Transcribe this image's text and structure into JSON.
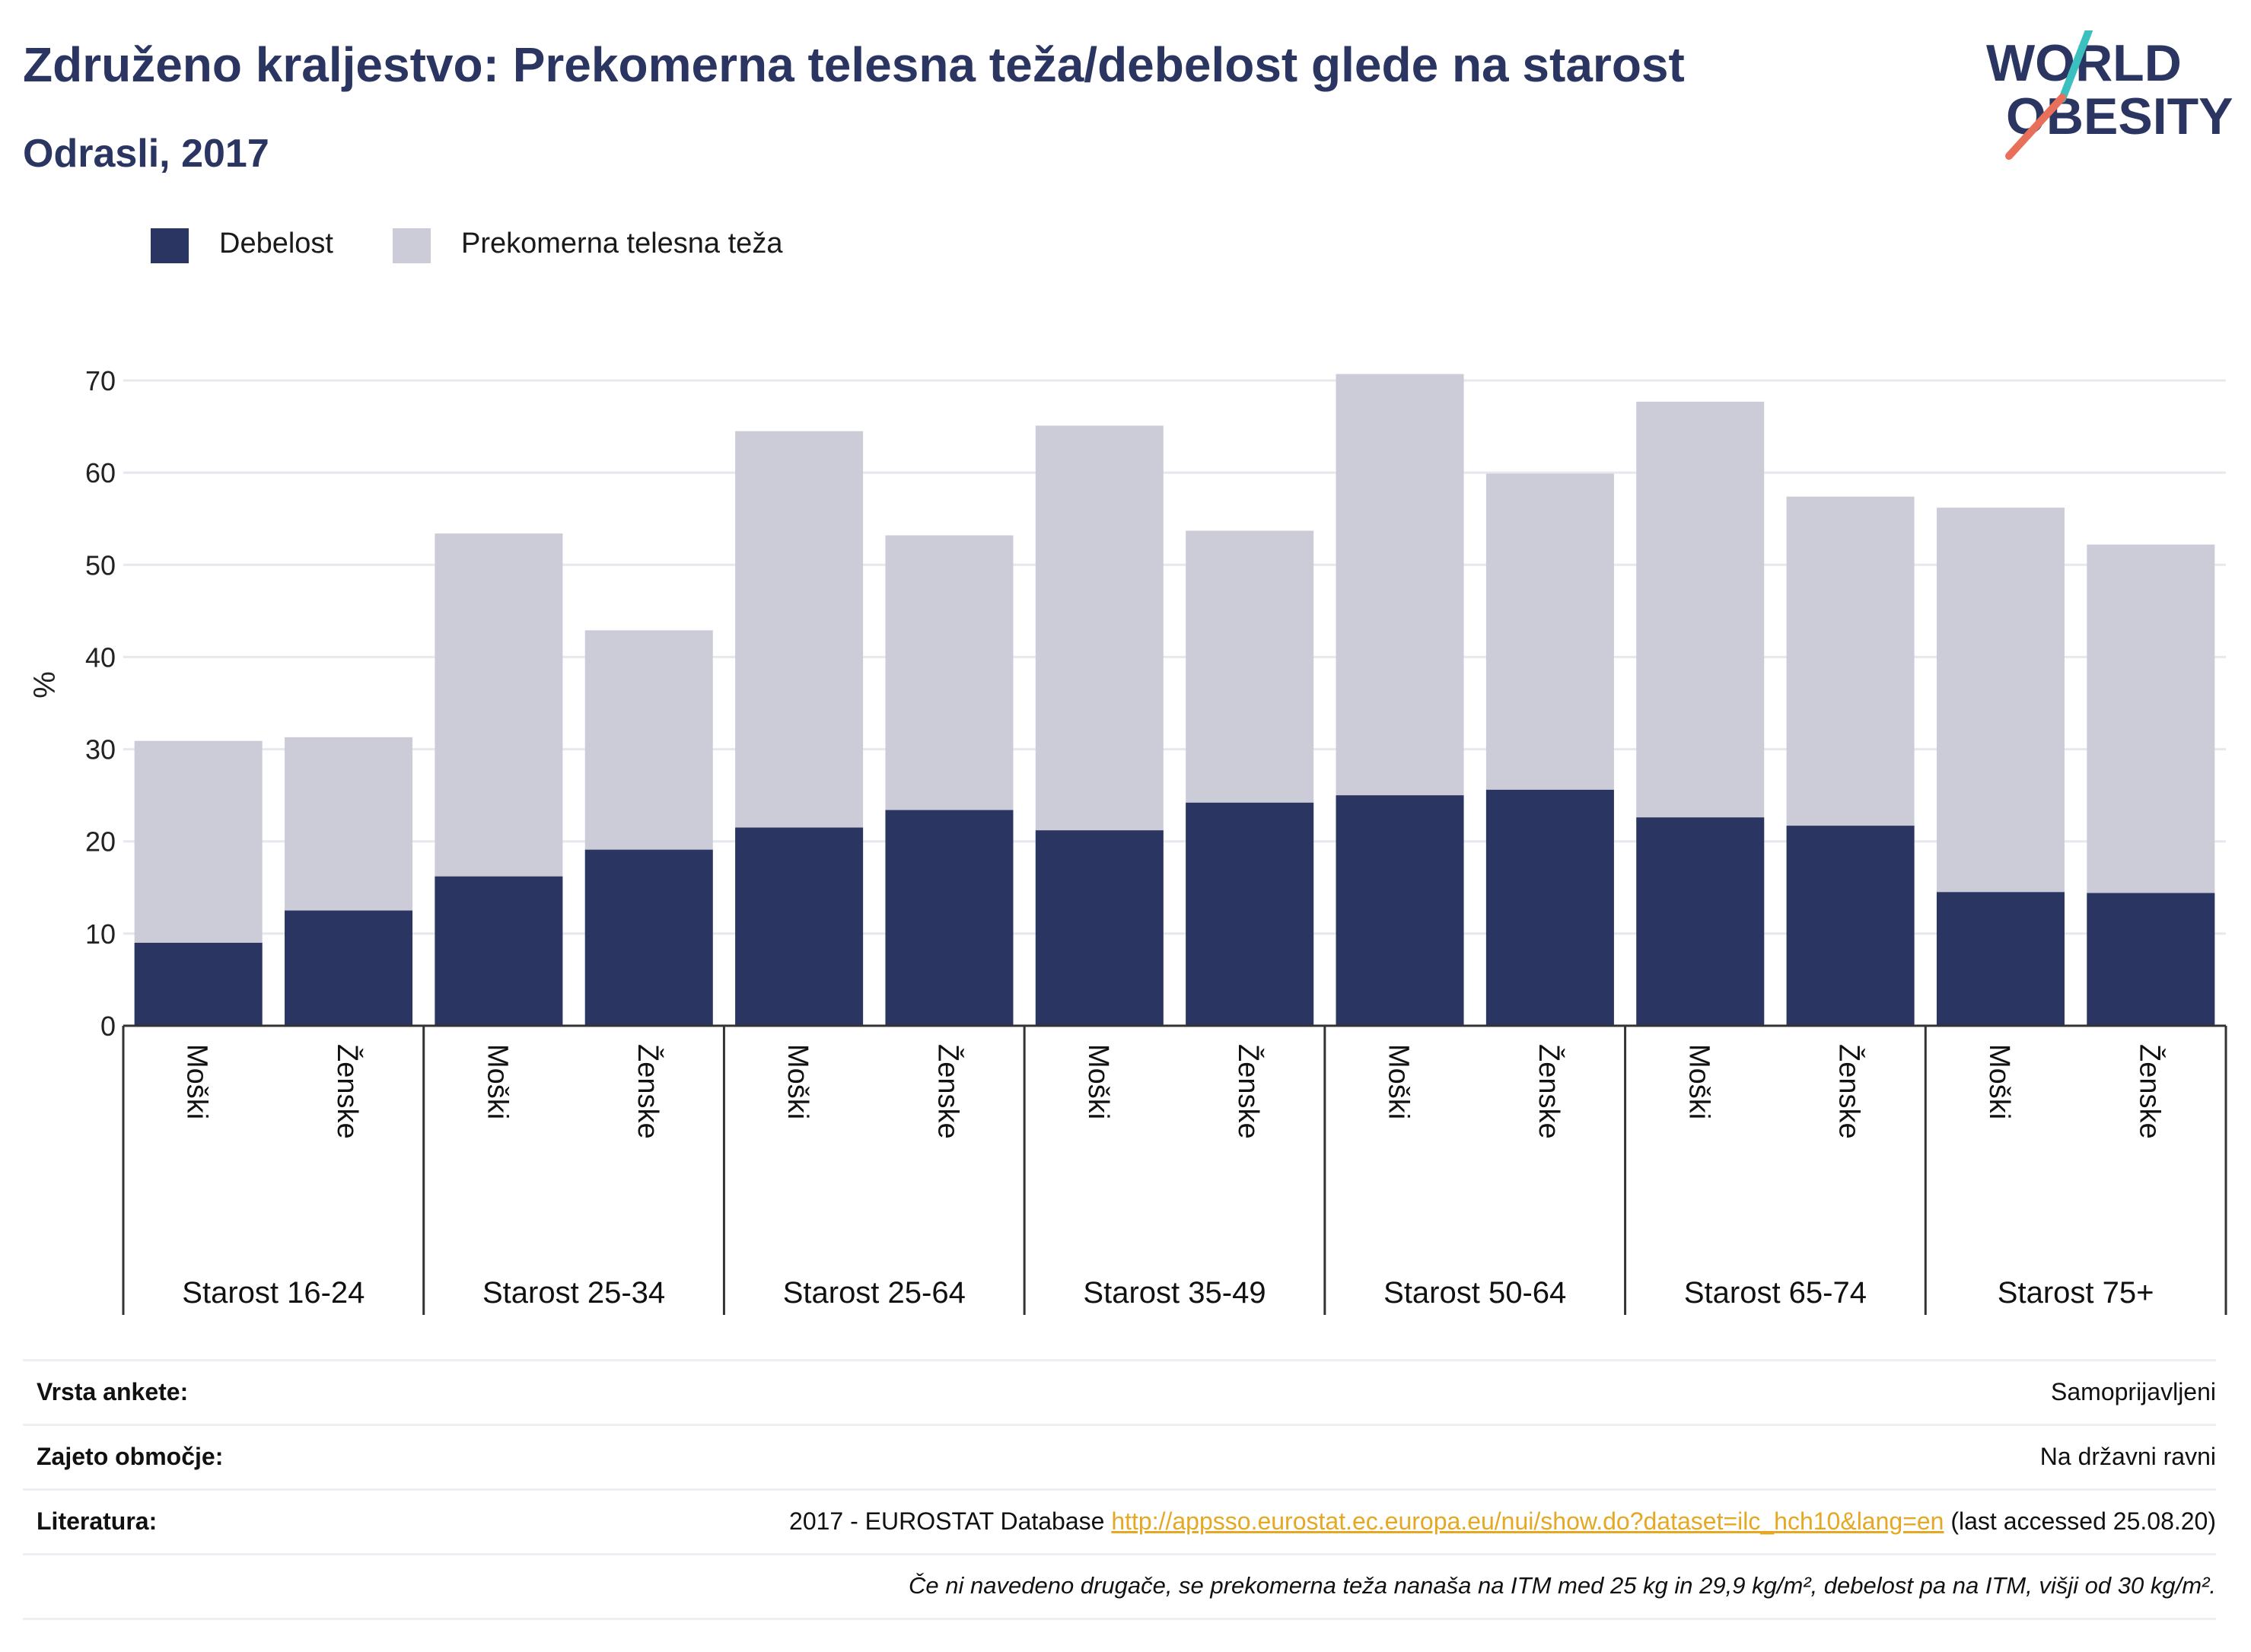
{
  "header": {
    "title": "Združeno kraljestvo: Prekomerna telesna teža/debelost glede na starost",
    "subtitle": "Odrasli, 2017"
  },
  "logo": {
    "line1": "WORLD",
    "line2": "OBESITY",
    "accent_teal": "#3bbfbf",
    "accent_coral": "#e8705a",
    "text_color": "#2b3561"
  },
  "legend": {
    "items": [
      {
        "label": "Debelost",
        "color": "#2b3561"
      },
      {
        "label": "Prekomerna telesna teža",
        "color": "#cbccd8"
      }
    ]
  },
  "colors": {
    "obesity": "#2b3561",
    "overweight": "#cbccd8",
    "grid": "#e6e8ee",
    "axis": "#333333"
  },
  "chart_data": {
    "type": "bar",
    "stacked": true,
    "ylabel": "%",
    "ylim": [
      0,
      70
    ],
    "yticks": [
      0,
      10,
      20,
      30,
      40,
      50,
      60,
      70
    ],
    "groups": [
      {
        "label": "Starost 16-24",
        "bars": [
          {
            "label": "Moški",
            "obesity": 9.0,
            "total": 30.9
          },
          {
            "label": "Ženske",
            "obesity": 12.5,
            "total": 31.3
          }
        ]
      },
      {
        "label": "Starost 25-34",
        "bars": [
          {
            "label": "Moški",
            "obesity": 16.2,
            "total": 53.4
          },
          {
            "label": "Ženske",
            "obesity": 19.1,
            "total": 42.9
          }
        ]
      },
      {
        "label": "Starost 25-64",
        "bars": [
          {
            "label": "Moški",
            "obesity": 21.5,
            "total": 64.5
          },
          {
            "label": "Ženske",
            "obesity": 23.4,
            "total": 53.2
          }
        ]
      },
      {
        "label": "Starost 35-49",
        "bars": [
          {
            "label": "Moški",
            "obesity": 21.2,
            "total": 65.1
          },
          {
            "label": "Ženske",
            "obesity": 24.2,
            "total": 53.7
          }
        ]
      },
      {
        "label": "Starost 50-64",
        "bars": [
          {
            "label": "Moški",
            "obesity": 25.0,
            "total": 70.7
          },
          {
            "label": "Ženske",
            "obesity": 25.6,
            "total": 59.9
          }
        ]
      },
      {
        "label": "Starost 65-74",
        "bars": [
          {
            "label": "Moški",
            "obesity": 22.6,
            "total": 67.7
          },
          {
            "label": "Ženske",
            "obesity": 21.7,
            "total": 57.4
          }
        ]
      },
      {
        "label": "Starost 75+",
        "bars": [
          {
            "label": "Moški",
            "obesity": 14.5,
            "total": 56.2
          },
          {
            "label": "Ženske",
            "obesity": 14.4,
            "total": 52.2
          }
        ]
      }
    ],
    "series": [
      {
        "name": "Debelost",
        "values": [
          9.0,
          12.5,
          16.2,
          19.1,
          21.5,
          23.4,
          21.2,
          24.2,
          25.0,
          25.6,
          22.6,
          21.7,
          14.5,
          14.4
        ]
      },
      {
        "name": "Prekomerna telesna teža",
        "values": [
          21.9,
          18.8,
          37.2,
          23.8,
          43.0,
          29.8,
          43.9,
          29.5,
          45.7,
          34.3,
          45.1,
          35.7,
          41.7,
          37.8
        ]
      }
    ]
  },
  "meta": {
    "survey_label": "Vrsta ankete:",
    "survey_value": "Samoprijavljeni",
    "coverage_label": "Zajeto območje:",
    "coverage_value": "Na državni ravni",
    "reference_label": "Literatura:",
    "reference_prefix": "2017 - EUROSTAT Database ",
    "reference_link": "http://appsso.eurostat.ec.europa.eu/nui/show.do?dataset=ilc_hch10&lang=en",
    "reference_suffix": " (last accessed 25.08.20)",
    "note": "Če ni navedeno drugače, se prekomerna teža nanaša na ITM med 25 kg in 29,9 kg/m², debelost pa na ITM, višji od 30 kg/m²."
  }
}
